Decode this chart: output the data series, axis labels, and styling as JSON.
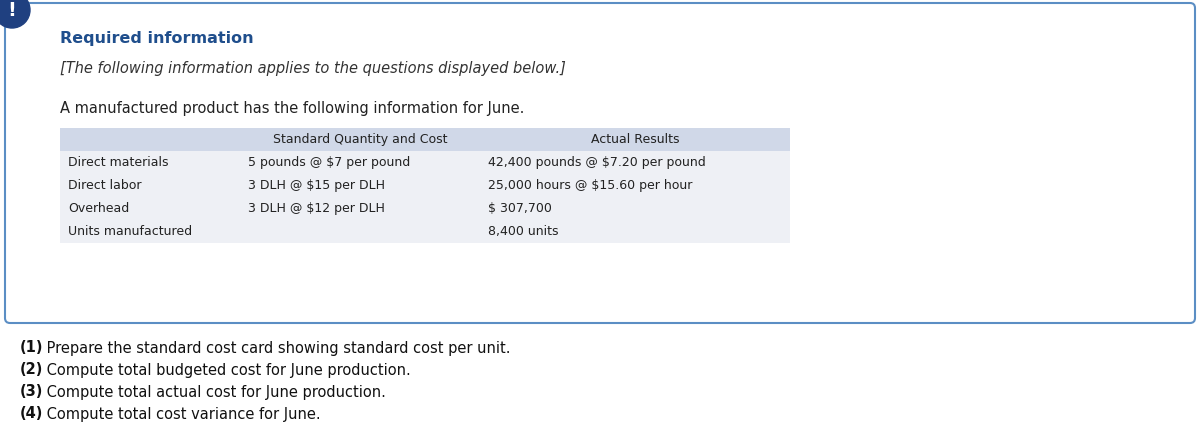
{
  "bg_color": "#ffffff",
  "card_bg": "#ffffff",
  "card_border": "#5b8ec4",
  "icon_bg": "#1f4080",
  "icon_text": "!",
  "title": "Required information",
  "title_color": "#1f4e8c",
  "subtitle": "[The following information applies to the questions displayed below.]",
  "body_text": "A manufactured product has the following information for June.",
  "table_header_bg": "#d0d8e8",
  "table_row_bg": "#eef0f5",
  "table_col2_header": "Standard Quantity and Cost",
  "table_col3_header": "Actual Results",
  "table_rows": [
    [
      "Direct materials",
      "5 pounds @ $7 per pound",
      "42,400 pounds @ $7.20 per pound"
    ],
    [
      "Direct labor",
      "3 DLH @ $15 per DLH",
      "25,000 hours @ $15.60 per hour"
    ],
    [
      "Overhead",
      "3 DLH @ $12 per DLH",
      "$ 307,700"
    ],
    [
      "Units manufactured",
      "",
      "8,400 units"
    ]
  ],
  "questions": [
    [
      "(1)",
      " Prepare the standard cost card showing standard cost per unit."
    ],
    [
      "(2)",
      " Compute total budgeted cost for June production."
    ],
    [
      "(3)",
      " Compute total actual cost for June production."
    ],
    [
      "(4)",
      " Compute total cost variance for June."
    ]
  ]
}
